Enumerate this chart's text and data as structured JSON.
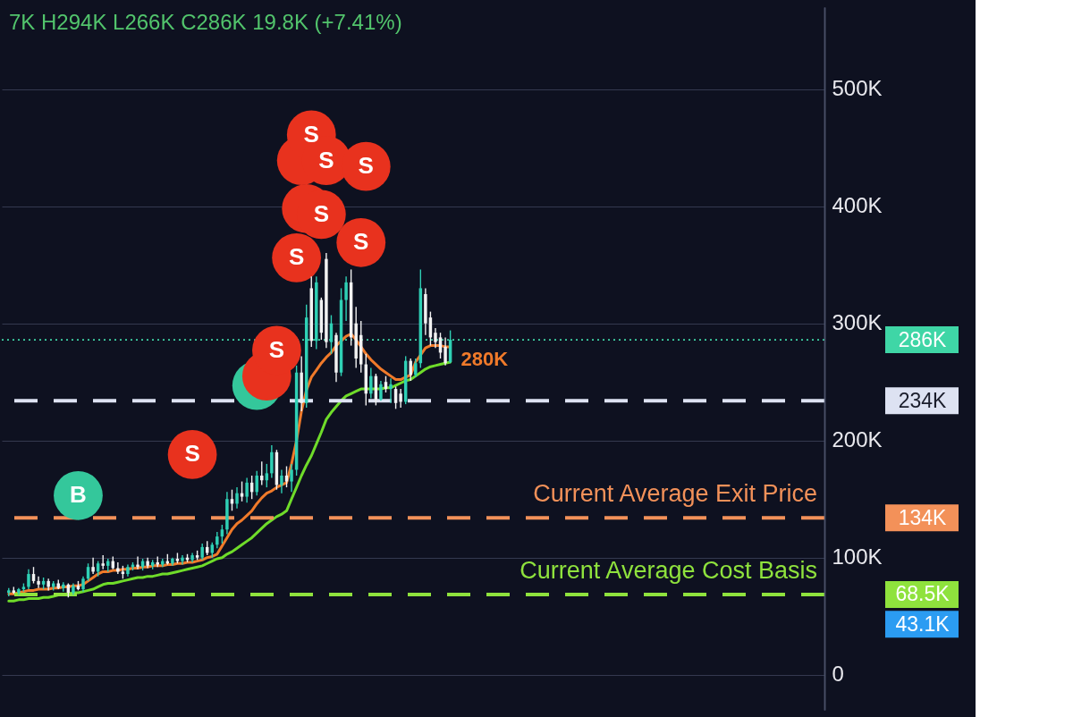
{
  "chart_data": {
    "type": "candlestick",
    "categories": [
      null,
      null,
      null,
      null,
      null,
      null,
      null,
      null,
      null,
      null,
      null,
      null,
      null,
      null,
      null,
      null,
      null,
      null,
      null,
      null,
      null,
      null,
      null,
      null,
      null,
      null,
      null,
      null,
      null,
      null,
      null,
      null,
      null,
      null,
      null,
      null,
      null,
      null,
      null,
      null,
      null,
      null,
      null,
      null,
      null,
      null,
      null,
      null,
      null,
      null,
      null,
      null,
      null,
      null,
      null,
      null,
      null,
      null,
      null,
      null,
      null,
      null,
      null,
      null,
      null,
      null,
      null,
      null,
      null,
      null,
      null,
      null,
      null,
      null,
      null,
      null,
      null,
      null,
      null,
      null,
      null,
      null,
      null,
      null,
      null,
      null,
      null,
      null,
      null,
      null,
      null,
      null,
      null,
      null,
      null,
      null,
      null,
      null,
      null,
      null,
      null,
      null,
      null,
      null,
      null,
      null,
      null,
      null,
      null,
      null,
      null,
      null,
      null,
      null,
      null,
      null,
      null,
      null,
      null,
      null,
      null,
      null,
      null,
      null,
      null,
      null,
      null,
      null,
      null,
      null,
      null,
      null,
      null,
      null,
      null,
      null,
      null,
      null,
      null,
      null,
      null,
      null,
      null,
      null,
      null,
      null,
      null,
      null,
      null,
      null,
      null,
      null,
      null,
      null,
      null,
      null,
      null,
      null,
      null,
      null,
      null,
      null,
      null,
      null
    ],
    "ohlc": [
      [
        70000,
        74000,
        67000,
        72000
      ],
      [
        72000,
        75000,
        69000,
        70000
      ],
      [
        70000,
        74000,
        68000,
        73000
      ],
      [
        73000,
        78000,
        71000,
        75000
      ],
      [
        75000,
        90000,
        73000,
        86000
      ],
      [
        86000,
        92000,
        78000,
        80000
      ],
      [
        80000,
        84000,
        74000,
        77000
      ],
      [
        77000,
        83000,
        73000,
        80000
      ],
      [
        80000,
        82000,
        72000,
        75000
      ],
      [
        75000,
        80000,
        72000,
        78000
      ],
      [
        78000,
        81000,
        73000,
        74000
      ],
      [
        74000,
        79000,
        71000,
        77000
      ],
      [
        77000,
        78000,
        66000,
        70000
      ],
      [
        70000,
        78000,
        68000,
        76000
      ],
      [
        76000,
        80000,
        72000,
        73000
      ],
      [
        73000,
        84000,
        71000,
        82000
      ],
      [
        82000,
        95000,
        80000,
        92000
      ],
      [
        92000,
        100000,
        86000,
        88000
      ],
      [
        88000,
        97000,
        84000,
        95000
      ],
      [
        95000,
        102000,
        90000,
        93000
      ],
      [
        93000,
        99000,
        88000,
        97000
      ],
      [
        97000,
        101000,
        90000,
        91000
      ],
      [
        91000,
        96000,
        86000,
        88000
      ],
      [
        88000,
        93000,
        82000,
        86000
      ],
      [
        86000,
        94000,
        84000,
        92000
      ],
      [
        92000,
        96000,
        89000,
        94000
      ],
      [
        94000,
        101000,
        90000,
        92000
      ],
      [
        92000,
        99000,
        89000,
        97000
      ],
      [
        97000,
        100000,
        91000,
        93000
      ],
      [
        93000,
        98000,
        90000,
        96000
      ],
      [
        96000,
        101000,
        92000,
        94000
      ],
      [
        94000,
        99000,
        92000,
        97000
      ],
      [
        97000,
        103000,
        94000,
        95000
      ],
      [
        95000,
        100000,
        93000,
        99000
      ],
      [
        99000,
        104000,
        95000,
        97000
      ],
      [
        97000,
        102000,
        94000,
        100000
      ],
      [
        100000,
        103000,
        96000,
        98000
      ],
      [
        98000,
        104000,
        96000,
        102000
      ],
      [
        102000,
        106000,
        98000,
        100000
      ],
      [
        100000,
        112000,
        98000,
        109000
      ],
      [
        109000,
        114000,
        102000,
        104000
      ],
      [
        104000,
        113000,
        100000,
        111000
      ],
      [
        111000,
        122000,
        108000,
        118000
      ],
      [
        118000,
        128000,
        112000,
        124000
      ],
      [
        124000,
        156000,
        120000,
        150000
      ],
      [
        150000,
        158000,
        140000,
        146000
      ],
      [
        146000,
        160000,
        142000,
        155000
      ],
      [
        155000,
        165000,
        148000,
        152000
      ],
      [
        152000,
        168000,
        147000,
        164000
      ],
      [
        164000,
        170000,
        150000,
        156000
      ],
      [
        156000,
        174000,
        153000,
        170000
      ],
      [
        170000,
        182000,
        162000,
        166000
      ],
      [
        166000,
        180000,
        160000,
        172000
      ],
      [
        172000,
        196000,
        168000,
        190000
      ],
      [
        190000,
        192000,
        158000,
        162000
      ],
      [
        162000,
        175000,
        155000,
        170000
      ],
      [
        170000,
        178000,
        160000,
        165000
      ],
      [
        165000,
        180000,
        156000,
        175000
      ],
      [
        175000,
        264000,
        170000,
        258000
      ],
      [
        258000,
        272000,
        225000,
        232000
      ],
      [
        232000,
        316000,
        228000,
        305000
      ],
      [
        330000,
        340000,
        280000,
        285000
      ],
      [
        285000,
        340000,
        278000,
        335000
      ],
      [
        320000,
        322000,
        286000,
        292000
      ],
      [
        355000,
        360000,
        279000,
        284000
      ],
      [
        284000,
        307000,
        274000,
        300000
      ],
      [
        290000,
        292000,
        250000,
        258000
      ],
      [
        258000,
        330000,
        255000,
        320000
      ],
      [
        320000,
        340000,
        302000,
        335000
      ],
      [
        335000,
        346000,
        281000,
        288000
      ],
      [
        300000,
        314000,
        262000,
        270000
      ],
      [
        290000,
        302000,
        258000,
        265000
      ],
      [
        265000,
        274000,
        230000,
        240000
      ],
      [
        240000,
        262000,
        236000,
        255000
      ],
      [
        255000,
        257000,
        230000,
        235000
      ],
      [
        235000,
        251000,
        234000,
        248000
      ],
      [
        250000,
        255000,
        241000,
        244000
      ],
      [
        244000,
        253000,
        232000,
        248000
      ],
      [
        244000,
        246000,
        227000,
        232000
      ],
      [
        240000,
        244000,
        228000,
        233000
      ],
      [
        233000,
        272000,
        231000,
        268000
      ],
      [
        268000,
        270000,
        251000,
        256000
      ],
      [
        256000,
        270000,
        254000,
        266000
      ],
      [
        266000,
        346000,
        262000,
        330000
      ],
      [
        325000,
        330000,
        290000,
        300000
      ],
      [
        305000,
        310000,
        281000,
        288000
      ],
      [
        292000,
        296000,
        279000,
        284000
      ],
      [
        288000,
        292000,
        270000,
        275000
      ],
      [
        280000,
        288000,
        264000,
        266000
      ],
      [
        267000,
        294000,
        266000,
        286000
      ],
      null,
      null,
      null,
      null,
      null,
      null,
      null,
      null,
      null,
      null,
      null,
      null,
      null,
      null,
      null,
      null,
      null,
      null,
      null,
      null,
      null,
      null,
      null,
      null,
      null,
      null,
      null,
      null,
      null,
      null,
      null,
      null,
      null,
      null,
      null,
      null,
      null,
      null,
      null,
      null,
      null,
      null,
      null,
      null,
      null,
      null,
      null,
      null,
      null,
      null,
      null,
      null,
      null,
      null,
      null,
      null,
      null,
      null,
      null,
      null,
      null,
      null,
      null,
      null,
      null,
      null,
      null,
      null,
      null,
      null,
      null,
      null,
      null,
      null
    ],
    "colors": [
      "#2fd0b5",
      "#f2f2f2",
      "#2fd0b5",
      "#2fd0b5",
      "#2fd0b5",
      "#f2f2f2",
      "#f2f2f2",
      "#2fd0b5",
      "#f2f2f2",
      "#2fd0b5",
      "#f2f2f2",
      "#2fd0b5",
      "#f2f2f2",
      "#2fd0b5",
      "#f2f2f2",
      "#2fd0b5",
      "#2fd0b5",
      "#f2f2f2",
      "#2fd0b5",
      "#f2f2f2",
      "#2fd0b5",
      "#f2f2f2",
      "#f2f2f2",
      "#f2f2f2",
      "#2fd0b5",
      "#2fd0b5",
      "#f2f2f2",
      "#2fd0b5",
      "#f2f2f2",
      "#2fd0b5",
      "#f2f2f2",
      "#2fd0b5",
      "#f2f2f2",
      "#2fd0b5",
      "#f2f2f2",
      "#2fd0b5",
      "#f2f2f2",
      "#2fd0b5",
      "#f2f2f2",
      "#2fd0b5",
      "#f2f2f2",
      "#2fd0b5",
      "#2fd0b5",
      "#2fd0b5",
      "#2fd0b5",
      "#f2f2f2",
      "#2fd0b5",
      "#f2f2f2",
      "#2fd0b5",
      "#f2f2f2",
      "#2fd0b5",
      "#f2f2f2",
      "#2fd0b5",
      "#2fd0b5",
      "#f2f2f2",
      "#2fd0b5",
      "#f2f2f2",
      "#2fd0b5",
      "#2fd0b5",
      "#f2f2f2",
      "#2fd0b5",
      "#f2f2f2",
      "#2fd0b5",
      "#f2f2f2",
      "#f2f2f2",
      "#2fd0b5",
      "#f2f2f2",
      "#2fd0b5",
      "#2fd0b5",
      "#f2f2f2",
      "#f2f2f2",
      "#f2f2f2",
      "#f2f2f2",
      "#2fd0b5",
      "#f2f2f2",
      "#2fd0b5",
      "#f2f2f2",
      "#2fd0b5",
      "#f2f2f2",
      "#f2f2f2",
      "#2fd0b5",
      "#f2f2f2",
      "#2fd0b5",
      "#2fd0b5",
      "#f2f2f2",
      "#f2f2f2",
      "#f2f2f2",
      "#f2f2f2",
      "#f2f2f2",
      "#2fd0b5",
      null,
      null,
      null,
      null,
      null,
      null,
      null,
      null,
      null,
      null,
      null,
      null,
      null,
      null,
      null,
      null,
      null,
      null,
      null,
      null,
      null,
      null,
      null,
      null,
      null,
      null,
      null,
      null,
      null,
      null,
      null,
      null,
      null,
      null,
      null,
      null,
      null,
      null,
      null,
      null,
      null,
      null,
      null,
      null,
      null,
      null,
      null,
      null,
      null,
      null,
      null,
      null,
      null,
      null,
      null,
      null,
      null,
      null,
      null,
      null,
      null,
      null,
      null,
      null,
      null,
      null,
      null,
      null,
      null,
      null,
      null,
      null,
      null,
      null
    ],
    "series": [
      {
        "type": "line",
        "color": "#f07a2a",
        "values": [
          69000,
          69000,
          70000,
          71000,
          72000,
          72000,
          73000,
          73000,
          73000,
          74000,
          74000,
          75000,
          75000,
          76000,
          76000,
          77000,
          80000,
          83000,
          86000,
          88000,
          88000,
          89000,
          89000,
          90000,
          90000,
          91000,
          91000,
          92000,
          92000,
          93000,
          93000,
          93000,
          94000,
          94000,
          95000,
          95000,
          96000,
          96000,
          97000,
          98000,
          100000,
          101000,
          103000,
          110000,
          117000,
          124000,
          129000,
          132000,
          136000,
          140000,
          146000,
          151000,
          155000,
          157000,
          160000,
          162000,
          164000,
          180000,
          200000,
          225000,
          243000,
          254000,
          260000,
          266000,
          271000,
          275000,
          281000,
          285000,
          289000,
          291000,
          286000,
          280000,
          274000,
          269000,
          265000,
          261000,
          258000,
          255000,
          252000,
          252000,
          254000,
          256000,
          267000,
          273000,
          279000,
          281000,
          281000,
          281000,
          280000,
          280000,
          null,
          null,
          null,
          null,
          null,
          null,
          null,
          null,
          null,
          null,
          null,
          null,
          null,
          null,
          null,
          null,
          null,
          null,
          null,
          null,
          null,
          null,
          null,
          null,
          null,
          null,
          null,
          null,
          null,
          null,
          null,
          null,
          null,
          null,
          null,
          null,
          null,
          null,
          null,
          null,
          null,
          null,
          null,
          null,
          null,
          null,
          null,
          null,
          null,
          null,
          null,
          null,
          null,
          null,
          null,
          null,
          null,
          null,
          null,
          null,
          null,
          null,
          null,
          null,
          null,
          null,
          null,
          null,
          null,
          null,
          null,
          null,
          null,
          null
        ],
        "value_labels": [
          null,
          null,
          null,
          null,
          null,
          null,
          null,
          null,
          null,
          null,
          null,
          null,
          null,
          null,
          null,
          null,
          null,
          null,
          null,
          null,
          null,
          null,
          null,
          null,
          null,
          null,
          null,
          null,
          null,
          null,
          null,
          null,
          null,
          null,
          null,
          null,
          null,
          null,
          null,
          null,
          null,
          null,
          null,
          null,
          null,
          null,
          null,
          null,
          null,
          null,
          null,
          null,
          null,
          null,
          null,
          null,
          null,
          null,
          null,
          null,
          null,
          null,
          null,
          null,
          null,
          null,
          null,
          null,
          null,
          null,
          null,
          null,
          null,
          null,
          null,
          null,
          null,
          null,
          null,
          null,
          null,
          null,
          null,
          null,
          null,
          null,
          null,
          null,
          null,
          "280K",
          null,
          null,
          null,
          null,
          null,
          null,
          null,
          null,
          null,
          null,
          null,
          null,
          null,
          null,
          null,
          null,
          null,
          null,
          null,
          null,
          null,
          null,
          null,
          null,
          null,
          null,
          null,
          null,
          null,
          null,
          null,
          null,
          null,
          null,
          null,
          null,
          null,
          null,
          null,
          null,
          null,
          null,
          null,
          null,
          null,
          null,
          null,
          null,
          null,
          null,
          null,
          null,
          null,
          null,
          null,
          null,
          null,
          null,
          null,
          null,
          null,
          null,
          null,
          null,
          null,
          null,
          null,
          null,
          null,
          null,
          null,
          null,
          null,
          null
        ]
      },
      {
        "type": "line",
        "color": "#6fdc2a",
        "values": [
          63000,
          63000,
          64000,
          64000,
          65000,
          65000,
          65000,
          66000,
          66000,
          67000,
          68000,
          68000,
          69000,
          70000,
          70000,
          71000,
          72000,
          73000,
          75000,
          77000,
          78000,
          78000,
          79000,
          80000,
          81000,
          82000,
          83000,
          83000,
          84000,
          84000,
          85000,
          86000,
          86000,
          87000,
          88000,
          89000,
          90000,
          91000,
          92000,
          93000,
          95000,
          97000,
          99000,
          100000,
          103000,
          105000,
          108000,
          111000,
          114000,
          117000,
          121000,
          125000,
          129000,
          132000,
          135000,
          137000,
          140000,
          150000,
          160000,
          170000,
          179000,
          187000,
          197000,
          207000,
          218000,
          224000,
          229000,
          234000,
          238000,
          240000,
          242000,
          244000,
          244000,
          244000,
          244000,
          244000,
          245000,
          245000,
          247000,
          249000,
          251000,
          252000,
          255000,
          258000,
          261000,
          263000,
          264000,
          265000,
          266000,
          267000,
          null,
          null,
          null,
          null,
          null,
          null,
          null,
          null,
          null,
          null,
          null,
          null,
          null,
          null,
          null,
          null,
          null,
          null,
          null,
          null,
          null,
          null,
          null,
          null,
          null,
          null,
          null,
          null,
          null,
          null,
          null,
          null,
          null,
          null,
          null,
          null,
          null,
          null,
          null,
          null,
          null,
          null,
          null,
          null,
          null,
          null,
          null,
          null,
          null,
          null,
          null,
          null,
          null,
          null,
          null,
          null,
          null,
          null,
          null,
          null,
          null,
          null,
          null,
          null,
          null,
          null,
          null,
          null,
          null,
          null,
          null,
          null,
          null,
          null
        ]
      },
      {
        "type": "scatter",
        "color": "#34c79b",
        "marker": "circle",
        "values": [
          null,
          null,
          null,
          null,
          null,
          null,
          null,
          null,
          null,
          null,
          null,
          null,
          null,
          null,
          153000,
          null,
          null,
          null,
          null,
          null,
          null,
          null,
          null,
          null,
          null,
          null,
          null,
          null,
          null,
          null,
          null,
          null,
          null,
          null,
          null,
          null,
          null,
          null,
          null,
          null,
          null,
          null,
          null,
          null,
          null,
          null,
          null,
          null,
          null,
          null,
          247000,
          null,
          null,
          null,
          null,
          null,
          null,
          null,
          null,
          null,
          null,
          null,
          null,
          null,
          null,
          null,
          null,
          null,
          null,
          null,
          null,
          null,
          null,
          null,
          null,
          null,
          null,
          null,
          null,
          null,
          null,
          null,
          null,
          null,
          null,
          null,
          null,
          null,
          null,
          null,
          null,
          null,
          null,
          null,
          null,
          null,
          null,
          null,
          null,
          null,
          null,
          null,
          null,
          null,
          null,
          null,
          null,
          null,
          null,
          null,
          null,
          null,
          null,
          null,
          null,
          null,
          null,
          null,
          null,
          null,
          null,
          null,
          null,
          null,
          null,
          null,
          null,
          null,
          null,
          null,
          null,
          null,
          null,
          null,
          null,
          null,
          null,
          null,
          null,
          null,
          null,
          null,
          null,
          null,
          null,
          null,
          null,
          null,
          null,
          null,
          null,
          null,
          null,
          null,
          null,
          null,
          null,
          null,
          null,
          null,
          null,
          null,
          null,
          null
        ],
        "value_labels": [
          null,
          null,
          null,
          null,
          null,
          null,
          null,
          null,
          null,
          null,
          null,
          null,
          null,
          null,
          "B",
          null,
          null,
          null,
          null,
          null,
          null,
          null,
          null,
          null,
          null,
          null,
          null,
          null,
          null,
          null,
          null,
          null,
          null,
          null,
          null,
          null,
          null,
          null,
          null,
          null,
          null,
          null,
          null,
          null,
          null,
          null,
          null,
          null,
          null,
          null,
          null,
          null,
          null,
          null,
          null,
          null,
          null,
          null,
          null,
          null,
          null,
          null,
          null,
          null,
          null,
          null,
          null,
          null,
          null,
          null,
          null,
          null,
          null,
          null,
          null,
          null,
          null,
          null,
          null,
          null,
          null,
          null,
          null,
          null,
          null,
          null,
          null,
          null,
          null,
          null,
          null,
          null,
          null,
          null,
          null,
          null,
          null,
          null,
          null,
          null,
          null,
          null,
          null,
          null,
          null,
          null,
          null,
          null,
          null,
          null,
          null,
          null,
          null,
          null,
          null,
          null,
          null,
          null,
          null,
          null,
          null,
          null,
          null,
          null,
          null,
          null,
          null,
          null,
          null,
          null,
          null,
          null,
          null,
          null,
          null,
          null,
          null,
          null,
          null,
          null,
          null,
          null,
          null,
          null,
          null,
          null,
          null,
          null,
          null,
          null,
          null,
          null,
          null,
          null,
          null,
          null,
          null,
          null,
          null,
          null,
          null,
          null,
          null,
          null
        ]
      },
      {
        "type": "scatter",
        "color": "#e8321e",
        "marker": "circle",
        "values": [
          null,
          null,
          null,
          null,
          null,
          null,
          null,
          null,
          null,
          null,
          null,
          null,
          null,
          null,
          null,
          null,
          null,
          null,
          null,
          null,
          null,
          null,
          null,
          null,
          null,
          null,
          null,
          null,
          null,
          null,
          null,
          null,
          null,
          null,
          null,
          null,
          null,
          188000,
          null,
          null,
          null,
          null,
          null,
          null,
          null,
          null,
          null,
          null,
          null,
          null,
          null,
          null,
          255000,
          null,
          277000,
          null,
          null,
          null,
          356000,
          439000,
          398000,
          461000,
          null,
          393000,
          439000,
          null,
          null,
          null,
          null,
          null,
          null,
          369000,
          434000,
          null,
          null,
          null,
          null,
          null,
          null,
          null,
          null,
          null,
          null,
          null,
          null,
          null,
          null,
          null,
          null,
          null,
          null,
          null,
          null,
          null,
          null,
          null,
          null,
          null,
          null,
          null,
          null,
          null,
          null,
          null,
          null,
          null,
          null,
          null,
          null,
          null,
          null,
          null,
          null,
          null,
          null,
          null,
          null,
          null,
          null,
          null,
          null,
          null,
          null,
          null,
          null,
          null,
          null,
          null,
          null,
          null,
          null,
          null,
          null,
          null,
          null,
          null,
          null,
          null,
          null,
          null,
          null,
          null,
          null,
          null,
          null,
          null,
          null,
          null,
          null,
          null,
          null,
          null,
          null,
          null,
          null,
          null,
          null,
          null,
          null,
          null,
          null,
          null,
          null,
          null
        ],
        "value_labels": [
          null,
          null,
          null,
          null,
          null,
          null,
          null,
          null,
          null,
          null,
          null,
          null,
          null,
          null,
          null,
          null,
          null,
          null,
          null,
          null,
          null,
          null,
          null,
          null,
          null,
          null,
          null,
          null,
          null,
          null,
          null,
          null,
          null,
          null,
          null,
          null,
          null,
          "S",
          null,
          null,
          null,
          null,
          null,
          null,
          null,
          null,
          null,
          null,
          null,
          null,
          null,
          null,
          null,
          null,
          "S",
          null,
          null,
          null,
          "S",
          null,
          null,
          "S",
          null,
          "S",
          "S",
          null,
          null,
          null,
          null,
          null,
          null,
          "S",
          "S",
          null,
          null,
          null,
          null,
          null,
          null,
          null,
          null,
          null,
          null,
          null,
          null,
          null,
          null,
          null,
          null,
          null,
          null,
          null,
          null,
          null,
          null,
          null,
          null,
          null,
          null,
          null,
          null,
          null,
          null,
          null,
          null,
          null,
          null,
          null,
          null,
          null,
          null,
          null,
          null,
          null,
          null,
          null,
          null,
          null,
          null,
          null,
          null,
          null,
          null,
          null,
          null,
          null,
          null,
          null,
          null,
          null,
          null,
          null,
          null,
          null,
          null,
          null,
          null,
          null,
          null,
          null,
          null,
          null,
          null,
          null,
          null,
          null,
          null,
          null,
          null,
          null,
          null,
          null,
          null,
          null,
          null,
          null,
          null,
          null,
          null,
          null,
          null,
          null,
          null,
          null
        ]
      }
    ],
    "ylim": [
      -30000,
      570000
    ],
    "yticks": [
      0,
      {
        "value": 100000,
        "label": "100K"
      },
      {
        "value": 200000,
        "label": "200K"
      },
      {
        "value": 300000,
        "label": "300K"
      },
      {
        "value": 400000,
        "label": "400K"
      },
      {
        "value": 500000,
        "label": "500K"
      }
    ],
    "y2lim": [
      -30000,
      570000
    ],
    "y2ticks": [
      {
        "value": 286000,
        "label": "286K"
      },
      {
        "value": 234000,
        "label": "234K"
      },
      {
        "value": 134000,
        "label": "134K"
      },
      {
        "value": 68500,
        "label": "68.5K"
      },
      {
        "value": 43100,
        "label": "43.1K"
      }
    ],
    "tick_labels": "y",
    "grid": "y",
    "ref_lines": [
      {
        "axis": "y",
        "value": 286000,
        "color": "#3fd6a6",
        "line_style": "dotted"
      },
      {
        "axis": "y",
        "value": 234000,
        "color": "#dde2f2",
        "line_style": "dashed"
      },
      {
        "axis": "y",
        "value": 134000,
        "label": "Current Average Exit Price",
        "color": "#f39159",
        "line_style": "dashed"
      },
      {
        "axis": "y",
        "value": 68500,
        "label": "Current Average Cost Basis",
        "color": "#8fe23d",
        "line_style": "dashed"
      }
    ],
    "annotations": [
      "7K H294K L266K C286K 19.8K (+7.41%)"
    ]
  }
}
